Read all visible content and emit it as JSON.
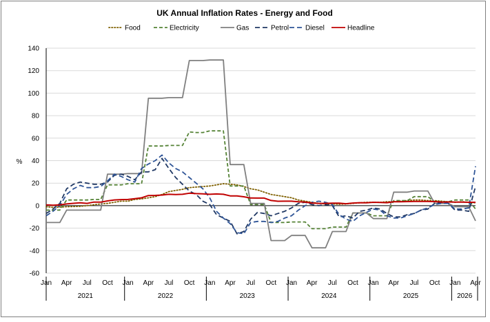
{
  "chart_data": {
    "type": "line",
    "title": "UK Annual Inflation Rates - Energy and Food",
    "ylabel": "%",
    "ylim": [
      -60,
      140
    ],
    "yticks": [
      -60,
      -40,
      -20,
      0,
      20,
      40,
      60,
      80,
      100,
      120,
      140
    ],
    "grid": true,
    "legend_position": "top",
    "x_month_labels": [
      "Jan",
      "Apr",
      "Jul",
      "Oct",
      "Jan",
      "Apr",
      "Jul",
      "Oct",
      "Jan",
      "Apr",
      "Jul",
      "Oct",
      "Jan",
      "Apr",
      "Jul",
      "Oct",
      "Jan",
      "Apr",
      "Jul",
      "Oct",
      "Jan",
      "Apr"
    ],
    "x_year_labels": [
      "2021",
      "2022",
      "2023",
      "2024",
      "2025",
      "2026"
    ],
    "x": [
      "2021-01",
      "2021-02",
      "2021-03",
      "2021-04",
      "2021-05",
      "2021-06",
      "2021-07",
      "2021-08",
      "2021-09",
      "2021-10",
      "2021-11",
      "2021-12",
      "2022-01",
      "2022-02",
      "2022-03",
      "2022-04",
      "2022-05",
      "2022-06",
      "2022-07",
      "2022-08",
      "2022-09",
      "2022-10",
      "2022-11",
      "2022-12",
      "2023-01",
      "2023-02",
      "2023-03",
      "2023-04",
      "2023-05",
      "2023-06",
      "2023-07",
      "2023-08",
      "2023-09",
      "2023-10",
      "2023-11",
      "2023-12",
      "2024-01",
      "2024-02",
      "2024-03",
      "2024-04",
      "2024-05",
      "2024-06",
      "2024-07",
      "2024-08",
      "2024-09",
      "2024-10",
      "2024-11",
      "2024-12",
      "2025-01",
      "2025-02",
      "2025-03",
      "2025-04",
      "2025-05",
      "2025-06",
      "2025-07",
      "2025-08",
      "2025-09",
      "2025-10",
      "2025-11",
      "2025-12",
      "2026-01",
      "2026-02",
      "2026-03",
      "2026-04"
    ],
    "series": [
      {
        "name": "Food",
        "color": "#7f6000",
        "dash": "dot",
        "values": [
          -1,
          -1.5,
          -1.3,
          -1,
          -0.8,
          -0.6,
          0,
          0.8,
          1.5,
          2,
          3,
          4,
          4,
          5.5,
          6,
          7,
          8,
          10,
          12.5,
          13.5,
          14.5,
          16,
          16.5,
          17,
          17.5,
          18.5,
          19.5,
          19,
          18.5,
          17,
          15,
          14,
          12,
          10,
          9,
          8,
          7,
          5,
          4,
          3,
          2,
          1.5,
          1.5,
          1.3,
          1.5,
          2,
          2.5,
          3,
          3,
          3,
          3.5,
          3.5,
          4,
          4.5,
          5,
          5,
          4.5,
          4.5,
          4,
          3.5,
          3,
          3.5,
          3,
          2.5
        ]
      },
      {
        "name": "Electricity",
        "color": "#548235",
        "dash": "dash",
        "values": [
          -4,
          -4,
          -4,
          5,
          5,
          5,
          5,
          5.5,
          5.5,
          18.5,
          18.5,
          18.5,
          19.5,
          19.5,
          19.5,
          53,
          53,
          53,
          53.5,
          53.5,
          53.5,
          65.5,
          65,
          65,
          66.5,
          66.5,
          66.5,
          17.5,
          17.5,
          17.5,
          1,
          1,
          1,
          -15,
          -15,
          -15,
          -14.5,
          -14.5,
          -14.5,
          -20.5,
          -20.5,
          -20.5,
          -19,
          -19,
          -19,
          -6.5,
          -6.5,
          -6.5,
          -9,
          -9,
          -9,
          4.5,
          4.5,
          4.5,
          8,
          8,
          8,
          3.5,
          3.5,
          3.5,
          5,
          5,
          5,
          -3
        ]
      },
      {
        "name": "Gas",
        "color": "#7f7f7f",
        "dash": "solid",
        "values": [
          -15,
          -15,
          -15,
          -4,
          -4,
          -4,
          -4,
          -4,
          -4,
          28,
          28,
          28,
          28.5,
          28.5,
          28.5,
          95.5,
          95.5,
          95.5,
          96,
          96,
          96,
          129,
          129,
          129,
          129.5,
          129.5,
          129.5,
          36.5,
          36.5,
          36.5,
          2,
          2,
          2,
          -31,
          -31,
          -31,
          -26.5,
          -26.5,
          -26.5,
          -37.5,
          -37.5,
          -37.5,
          -23,
          -23,
          -23,
          -6.5,
          -6.5,
          -6.5,
          -11.5,
          -11.5,
          -11.5,
          12,
          12,
          12,
          13,
          13,
          13,
          2,
          2,
          2,
          -1,
          -1,
          -1,
          -13.5
        ]
      },
      {
        "name": "Petrol",
        "color": "#203864",
        "dash": "longdash",
        "values": [
          -7,
          -3,
          2,
          15,
          19,
          21,
          20,
          19,
          19,
          21,
          27,
          28,
          26,
          23,
          30,
          30,
          32,
          42,
          33,
          25,
          19,
          13,
          10,
          4,
          1,
          -8,
          -11,
          -14,
          -25,
          -23,
          -12,
          -6,
          -7,
          -9,
          -7,
          -5,
          -2,
          2,
          3,
          1,
          0,
          1,
          0,
          -10,
          -9,
          -11,
          -5,
          -4,
          -2,
          -3,
          -7,
          -10,
          -10,
          -8,
          -7,
          -4,
          -3,
          2,
          3,
          2,
          -4,
          -4,
          -5,
          17
        ]
      },
      {
        "name": "Diesel",
        "color": "#2f5597",
        "dash": "longdash",
        "values": [
          -9,
          -5,
          0,
          10,
          15,
          18,
          16,
          16,
          17,
          22,
          28,
          26,
          23,
          21,
          33,
          37,
          40,
          45,
          38,
          33,
          30,
          25,
          20,
          15,
          7,
          -5,
          -11,
          -16,
          -24,
          -25,
          -15,
          -14,
          -14,
          -15,
          -14,
          -11,
          -9,
          -4,
          0,
          3,
          4,
          3,
          1,
          -8,
          -12,
          -14,
          -9,
          -6,
          -3,
          -4,
          -9,
          -11,
          -11,
          -9,
          -7,
          -4,
          -2,
          1,
          2,
          2,
          -3,
          -3,
          -2,
          35
        ]
      },
      {
        "name": "Headline",
        "color": "#c00000",
        "dash": "solid",
        "values": [
          0.7,
          0.4,
          0.7,
          1.5,
          2.1,
          2.5,
          2,
          3.2,
          3.1,
          4.2,
          5.1,
          5.4,
          5.5,
          6.2,
          7,
          9,
          9.1,
          9.4,
          10.1,
          9.9,
          10.1,
          11.1,
          10.7,
          10.5,
          10.1,
          10.4,
          10.1,
          8.7,
          8.7,
          7.9,
          6.8,
          6.7,
          6.7,
          4.6,
          3.9,
          4,
          4,
          3.4,
          3.2,
          2.3,
          2,
          2,
          2.2,
          2.2,
          1.7,
          2.3,
          2.6,
          2.5,
          3,
          2.8,
          2.6,
          3.5,
          3.4,
          3.6,
          3.8,
          3.8,
          3.8,
          3.6,
          3.2,
          3.3,
          3.2,
          3.1,
          3.0,
          3.0
        ]
      }
    ]
  }
}
